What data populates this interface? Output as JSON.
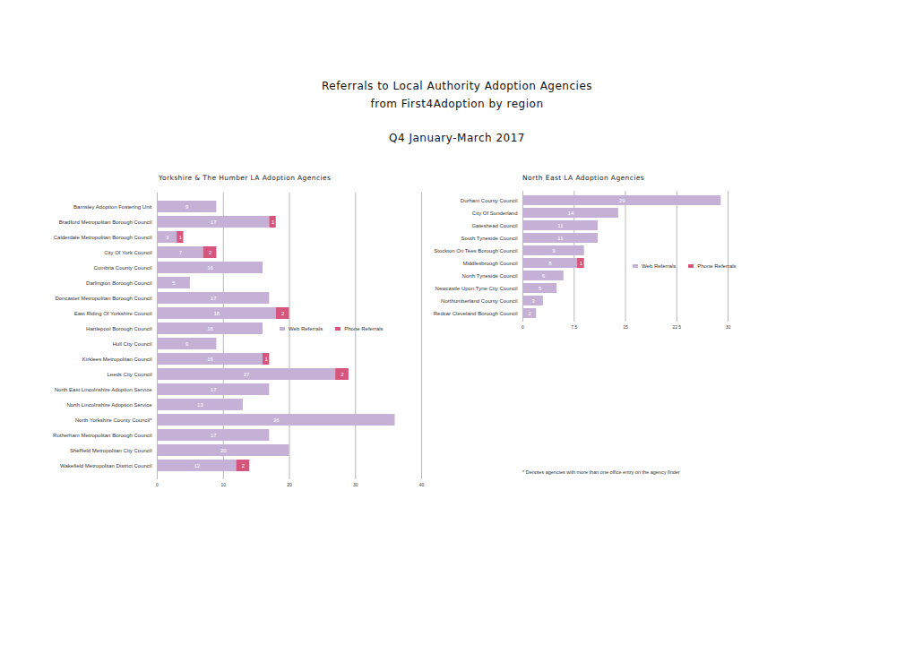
{
  "title": "Referrals to Local Authority Adoption Agencies",
  "subtitle": "from First4Adoption by region",
  "period": "Q4 January-March 2017",
  "note": "* Denotes agencies with more than one office entry on the agency finder",
  "chart_data": [
    {
      "type": "bar",
      "orientation": "horizontal",
      "stacked": true,
      "title": "Yorkshire & The Humber LA Adoption Agencies",
      "categories": [
        "Barnsley Adoption Fostering Unit",
        "Bradford Metropolitan Borough Council",
        "Calderdale Metropolitan Borough Council",
        "City Of York Council",
        "Cumbria County Council",
        "Darlington Borough Council",
        "Doncaster Metropolitan Borough Council",
        "East Riding Of Yorkshire Council",
        "Hartlepool Borough Council",
        "Hull City Council",
        "Kirklees Metropolitan Council",
        "Leeds City Council",
        "North East Lincolnshire Adoption Service",
        "North Lincolnshire Adoption Service",
        "North Yorkshire County Council*",
        "Rotherham Metropolitan Borough Council",
        "Sheffield Metropolitan City Council",
        "Wakefield Metropolitan District Council"
      ],
      "series": [
        {
          "name": "Web Referrals",
          "color": "#c6b1d6",
          "values": [
            9,
            17,
            3,
            7,
            16,
            5,
            17,
            18,
            16,
            9,
            16,
            27,
            17,
            13,
            36,
            17,
            20,
            12
          ]
        },
        {
          "name": "Phone Referrals",
          "color": "#d6557c",
          "values": [
            null,
            1,
            1,
            2,
            null,
            null,
            null,
            2,
            null,
            null,
            1,
            2,
            null,
            null,
            null,
            null,
            null,
            2
          ]
        }
      ],
      "xlim": [
        0,
        40
      ],
      "xticks": [
        0,
        10,
        20,
        30,
        40
      ],
      "grid": true,
      "data_labels": true,
      "legend": "right"
    },
    {
      "type": "bar",
      "orientation": "horizontal",
      "stacked": true,
      "title": "North East LA Adoption Agencies",
      "categories": [
        "Durham County Council",
        "City Of Sunderland",
        "Gateshead Council",
        "South Tyneside Council",
        "Stockton On Tees Borough Council",
        "Middlesbrough Council",
        "North Tyneside Council",
        "Newcastle Upon Tyne City Council",
        "Northumberland County Council",
        "Redcar Cleveland Borough Council"
      ],
      "series": [
        {
          "name": "Web Referrals",
          "color": "#c6b1d6",
          "values": [
            29,
            14,
            11,
            11,
            9,
            8,
            6,
            5,
            3,
            2
          ]
        },
        {
          "name": "Phone Referrals",
          "color": "#d6557c",
          "values": [
            null,
            null,
            null,
            null,
            null,
            1,
            null,
            null,
            null,
            null
          ]
        }
      ],
      "xlim": [
        0,
        30
      ],
      "xticks": [
        0,
        7.5,
        15,
        22.5,
        30
      ],
      "grid": true,
      "data_labels": true,
      "legend": "right"
    }
  ]
}
